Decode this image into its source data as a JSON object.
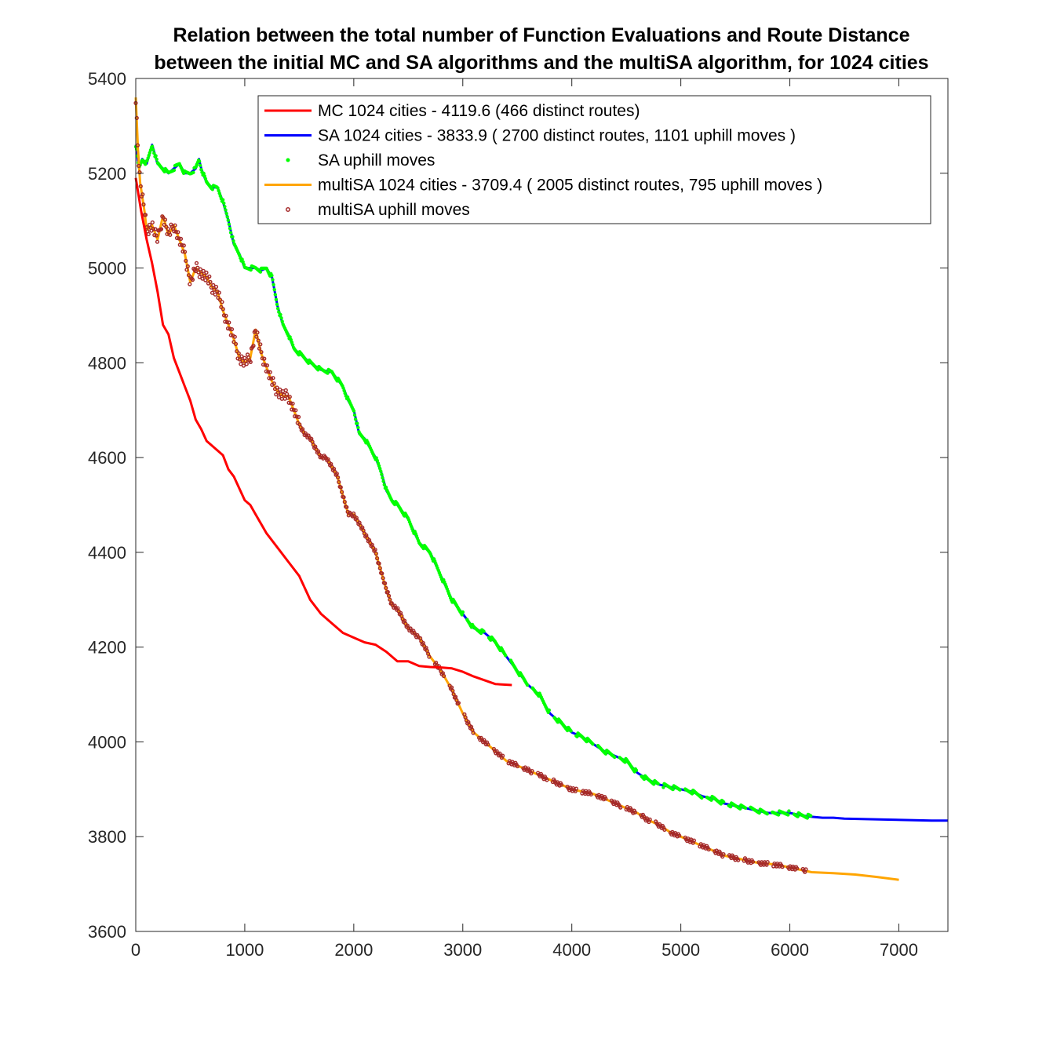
{
  "chart_data": {
    "type": "line",
    "title": [
      "Relation between the total number of Function Evaluations and Route Distance",
      "between the initial MC and SA algorithms and the multiSA algorithm, for 1024 cities"
    ],
    "xlabel": "",
    "ylabel": "",
    "xlim": [
      0,
      7450
    ],
    "ylim": [
      3600,
      5400
    ],
    "xticks": [
      0,
      1000,
      2000,
      3000,
      4000,
      5000,
      6000,
      7000
    ],
    "yticks": [
      3600,
      3800,
      4000,
      4200,
      4400,
      4600,
      4800,
      5000,
      5200,
      5400
    ],
    "grid": false,
    "legend_position": "top-right",
    "series": [
      {
        "name": "MC 1024 cities - 4119.6 (466 distinct routes)",
        "color": "#ff0000",
        "kind": "line",
        "points": [
          [
            0,
            5190
          ],
          [
            50,
            5120
          ],
          [
            100,
            5060
          ],
          [
            150,
            5010
          ],
          [
            200,
            4950
          ],
          [
            250,
            4880
          ],
          [
            300,
            4860
          ],
          [
            350,
            4810
          ],
          [
            400,
            4780
          ],
          [
            450,
            4750
          ],
          [
            500,
            4720
          ],
          [
            550,
            4680
          ],
          [
            600,
            4660
          ],
          [
            650,
            4635
          ],
          [
            700,
            4625
          ],
          [
            800,
            4605
          ],
          [
            850,
            4575
          ],
          [
            900,
            4560
          ],
          [
            1000,
            4510
          ],
          [
            1050,
            4500
          ],
          [
            1100,
            4480
          ],
          [
            1150,
            4460
          ],
          [
            1200,
            4440
          ],
          [
            1300,
            4410
          ],
          [
            1400,
            4380
          ],
          [
            1500,
            4350
          ],
          [
            1600,
            4300
          ],
          [
            1700,
            4270
          ],
          [
            1800,
            4250
          ],
          [
            1900,
            4230
          ],
          [
            2000,
            4220
          ],
          [
            2100,
            4210
          ],
          [
            2200,
            4205
          ],
          [
            2300,
            4190
          ],
          [
            2400,
            4170
          ],
          [
            2500,
            4170
          ],
          [
            2600,
            4160
          ],
          [
            2700,
            4158
          ],
          [
            2800,
            4157
          ],
          [
            2900,
            4155
          ],
          [
            3000,
            4148
          ],
          [
            3100,
            4138
          ],
          [
            3200,
            4130
          ],
          [
            3300,
            4122
          ],
          [
            3450,
            4120
          ]
        ]
      },
      {
        "name": "SA 1024 cities - 3833.9 ( 2700 distinct routes, 1101 uphill moves )",
        "color": "#0000ff",
        "kind": "line",
        "points": [
          [
            0,
            5260
          ],
          [
            30,
            5210
          ],
          [
            60,
            5230
          ],
          [
            100,
            5220
          ],
          [
            150,
            5260
          ],
          [
            200,
            5220
          ],
          [
            250,
            5210
          ],
          [
            300,
            5200
          ],
          [
            350,
            5210
          ],
          [
            400,
            5220
          ],
          [
            450,
            5200
          ],
          [
            500,
            5200
          ],
          [
            550,
            5210
          ],
          [
            580,
            5230
          ],
          [
            600,
            5210
          ],
          [
            650,
            5180
          ],
          [
            700,
            5170
          ],
          [
            750,
            5170
          ],
          [
            800,
            5140
          ],
          [
            850,
            5100
          ],
          [
            900,
            5050
          ],
          [
            950,
            5030
          ],
          [
            1000,
            5000
          ],
          [
            1050,
            5000
          ],
          [
            1100,
            5000
          ],
          [
            1150,
            4995
          ],
          [
            1200,
            5000
          ],
          [
            1250,
            4980
          ],
          [
            1300,
            4920
          ],
          [
            1350,
            4880
          ],
          [
            1400,
            4860
          ],
          [
            1450,
            4830
          ],
          [
            1500,
            4820
          ],
          [
            1600,
            4800
          ],
          [
            1700,
            4785
          ],
          [
            1800,
            4780
          ],
          [
            1900,
            4750
          ],
          [
            1950,
            4720
          ],
          [
            2000,
            4700
          ],
          [
            2050,
            4650
          ],
          [
            2100,
            4640
          ],
          [
            2200,
            4600
          ],
          [
            2250,
            4570
          ],
          [
            2300,
            4530
          ],
          [
            2350,
            4510
          ],
          [
            2400,
            4500
          ],
          [
            2500,
            4470
          ],
          [
            2600,
            4420
          ],
          [
            2700,
            4400
          ],
          [
            2800,
            4350
          ],
          [
            2900,
            4300
          ],
          [
            3000,
            4270
          ],
          [
            3100,
            4240
          ],
          [
            3200,
            4230
          ],
          [
            3300,
            4210
          ],
          [
            3400,
            4180
          ],
          [
            3500,
            4150
          ],
          [
            3600,
            4120
          ],
          [
            3700,
            4100
          ],
          [
            3800,
            4060
          ],
          [
            3900,
            4040
          ],
          [
            4000,
            4020
          ],
          [
            4100,
            4010
          ],
          [
            4200,
            3995
          ],
          [
            4300,
            3980
          ],
          [
            4400,
            3970
          ],
          [
            4500,
            3960
          ],
          [
            4600,
            3935
          ],
          [
            4700,
            3920
          ],
          [
            4800,
            3910
          ],
          [
            4900,
            3905
          ],
          [
            5000,
            3900
          ],
          [
            5100,
            3895
          ],
          [
            5200,
            3885
          ],
          [
            5300,
            3880
          ],
          [
            5400,
            3870
          ],
          [
            5500,
            3865
          ],
          [
            5600,
            3860
          ],
          [
            5700,
            3855
          ],
          [
            5800,
            3850
          ],
          [
            5900,
            3850
          ],
          [
            6000,
            3850
          ],
          [
            6100,
            3845
          ],
          [
            6200,
            3842
          ],
          [
            6300,
            3840
          ],
          [
            6400,
            3840
          ],
          [
            6500,
            3838
          ],
          [
            6700,
            3837
          ],
          [
            6900,
            3836
          ],
          [
            7100,
            3835
          ],
          [
            7300,
            3834
          ],
          [
            7450,
            3834
          ]
        ]
      },
      {
        "name": "SA uphill moves",
        "color": "#00ff00",
        "kind": "markers",
        "marker": "dot",
        "x_range": [
          0,
          6200
        ]
      },
      {
        "name": "multiSA 1024 cities - 3709.4 ( 2005 distinct routes, 795 uphill moves )",
        "color": "#ffa500",
        "kind": "line",
        "points": [
          [
            0,
            5360
          ],
          [
            20,
            5250
          ],
          [
            40,
            5180
          ],
          [
            80,
            5120
          ],
          [
            100,
            5080
          ],
          [
            150,
            5090
          ],
          [
            200,
            5060
          ],
          [
            250,
            5110
          ],
          [
            300,
            5070
          ],
          [
            350,
            5090
          ],
          [
            400,
            5060
          ],
          [
            450,
            5030
          ],
          [
            500,
            4970
          ],
          [
            550,
            5000
          ],
          [
            600,
            4990
          ],
          [
            650,
            4980
          ],
          [
            700,
            4960
          ],
          [
            750,
            4950
          ],
          [
            800,
            4910
          ],
          [
            850,
            4880
          ],
          [
            900,
            4850
          ],
          [
            950,
            4810
          ],
          [
            1000,
            4800
          ],
          [
            1050,
            4810
          ],
          [
            1100,
            4870
          ],
          [
            1150,
            4820
          ],
          [
            1200,
            4790
          ],
          [
            1250,
            4760
          ],
          [
            1300,
            4740
          ],
          [
            1350,
            4730
          ],
          [
            1400,
            4730
          ],
          [
            1450,
            4700
          ],
          [
            1500,
            4670
          ],
          [
            1550,
            4650
          ],
          [
            1600,
            4640
          ],
          [
            1650,
            4620
          ],
          [
            1700,
            4600
          ],
          [
            1750,
            4600
          ],
          [
            1800,
            4580
          ],
          [
            1850,
            4560
          ],
          [
            1900,
            4520
          ],
          [
            1950,
            4480
          ],
          [
            2000,
            4480
          ],
          [
            2050,
            4460
          ],
          [
            2100,
            4440
          ],
          [
            2150,
            4420
          ],
          [
            2200,
            4400
          ],
          [
            2250,
            4360
          ],
          [
            2300,
            4320
          ],
          [
            2350,
            4290
          ],
          [
            2400,
            4280
          ],
          [
            2450,
            4260
          ],
          [
            2500,
            4240
          ],
          [
            2550,
            4230
          ],
          [
            2600,
            4220
          ],
          [
            2700,
            4180
          ],
          [
            2800,
            4150
          ],
          [
            2900,
            4110
          ],
          [
            3000,
            4060
          ],
          [
            3100,
            4020
          ],
          [
            3200,
            4000
          ],
          [
            3300,
            3980
          ],
          [
            3400,
            3960
          ],
          [
            3500,
            3950
          ],
          [
            3600,
            3940
          ],
          [
            3700,
            3930
          ],
          [
            3800,
            3920
          ],
          [
            3900,
            3910
          ],
          [
            4000,
            3900
          ],
          [
            4100,
            3895
          ],
          [
            4200,
            3890
          ],
          [
            4300,
            3880
          ],
          [
            4400,
            3870
          ],
          [
            4500,
            3860
          ],
          [
            4600,
            3850
          ],
          [
            4700,
            3835
          ],
          [
            4800,
            3825
          ],
          [
            4900,
            3810
          ],
          [
            5000,
            3800
          ],
          [
            5100,
            3790
          ],
          [
            5200,
            3780
          ],
          [
            5300,
            3770
          ],
          [
            5400,
            3760
          ],
          [
            5500,
            3755
          ],
          [
            5600,
            3750
          ],
          [
            5700,
            3745
          ],
          [
            5800,
            3743
          ],
          [
            5900,
            3740
          ],
          [
            6000,
            3735
          ],
          [
            6100,
            3730
          ],
          [
            6200,
            3725
          ],
          [
            6400,
            3723
          ],
          [
            6600,
            3720
          ],
          [
            6800,
            3715
          ],
          [
            7000,
            3709
          ]
        ]
      },
      {
        "name": "multiSA uphill moves",
        "color": "#a52a2a",
        "kind": "markers",
        "marker": "circle",
        "x_range": [
          0,
          6150
        ]
      }
    ]
  }
}
